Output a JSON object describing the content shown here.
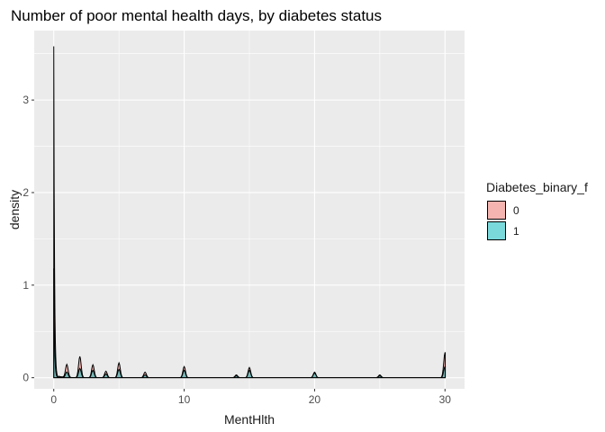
{
  "chart_data": {
    "type": "area",
    "title": "Number of poor mental health days, by diabetes status",
    "xlabel": "MentHlth",
    "ylabel": "density",
    "xlim": [
      -1.5,
      31.5
    ],
    "ylim": [
      -0.12,
      3.75
    ],
    "x_ticks": [
      0,
      10,
      20,
      30
    ],
    "x_tick_labels": [
      "0",
      "10",
      "20",
      "30"
    ],
    "y_ticks": [
      0,
      1,
      2,
      3
    ],
    "y_tick_labels": [
      "0",
      "1",
      "2",
      "3"
    ],
    "grid": true,
    "legend": {
      "title": "Diabetes_binary_f",
      "position": "right",
      "entries": [
        {
          "label": "0",
          "color": "#F8766D"
        },
        {
          "label": "1",
          "color": "#00BFC4"
        }
      ]
    },
    "series": [
      {
        "name": "0",
        "color": "#F8766D",
        "fill_opacity": 0.5,
        "points": [
          [
            0,
            3.58
          ],
          [
            0.4,
            0.0
          ],
          [
            1,
            0.14
          ],
          [
            2,
            0.23
          ],
          [
            3,
            0.14
          ],
          [
            4,
            0.07
          ],
          [
            5,
            0.16
          ],
          [
            7,
            0.06
          ],
          [
            10,
            0.12
          ],
          [
            14,
            0.03
          ],
          [
            15,
            0.11
          ],
          [
            20,
            0.06
          ],
          [
            25,
            0.03
          ],
          [
            30,
            0.27
          ]
        ]
      },
      {
        "name": "1",
        "color": "#00BFC4",
        "fill_opacity": 0.5,
        "points": [
          [
            0,
            1.18
          ],
          [
            0.4,
            0.0
          ],
          [
            1,
            0.06
          ],
          [
            2,
            0.1
          ],
          [
            3,
            0.08
          ],
          [
            4,
            0.04
          ],
          [
            5,
            0.09
          ],
          [
            7,
            0.03
          ],
          [
            10,
            0.08
          ],
          [
            14,
            0.02
          ],
          [
            15,
            0.08
          ],
          [
            20,
            0.05
          ],
          [
            25,
            0.02
          ],
          [
            30,
            0.12
          ]
        ]
      }
    ]
  }
}
